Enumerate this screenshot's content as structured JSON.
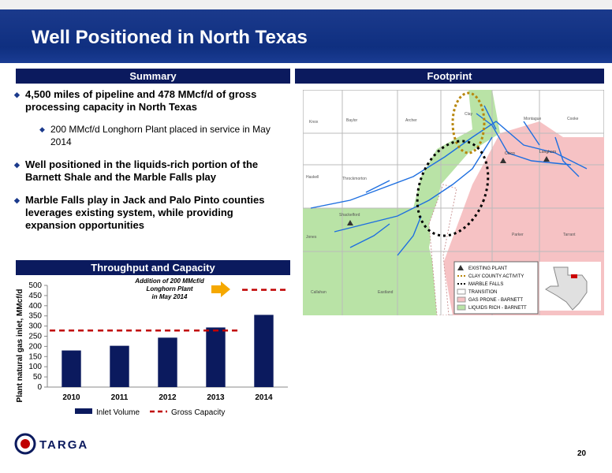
{
  "header": {
    "title": "Well Positioned in North Texas"
  },
  "summary": {
    "heading": "Summary",
    "bullets": [
      {
        "text": "4,500 miles of pipeline and 478 MMcf/d of gross processing capacity in North Texas",
        "sub": [
          "200 MMcf/d Longhorn Plant placed in service in May 2014"
        ]
      },
      {
        "text": "Well positioned in the liquids-rich portion of the Barnett Shale and the Marble Falls play"
      },
      {
        "text": "Marble Falls play in Jack and Palo Pinto counties leverages existing system, while providing expansion opportunities"
      }
    ]
  },
  "footprint": {
    "heading": "Footprint",
    "counties": [
      "Knox",
      "Baylor",
      "Archer",
      "Clay",
      "Montague",
      "Cooke",
      "Haskell",
      "Throckmorton",
      "Shackelford",
      "Jones",
      "Callahan",
      "Eastland",
      "Parker",
      "Tarrant"
    ],
    "plants": [
      "Chico",
      "Longhorn"
    ],
    "legend": [
      "EXISTING PLANT",
      "CLAY COUNTY ACTIVITY",
      "MARBLE FALLS",
      "TRANSITION",
      "GAS PRONE - BARNETT",
      "LIQUIDS RICH - BARNETT"
    ]
  },
  "throughput": {
    "heading": "Throughput and Capacity"
  },
  "chart_data": {
    "type": "bar",
    "y_label": "Plant natural gas inlet, MMcf/d",
    "annotation": [
      "Addition of 200 MMcf/d",
      "Longhorn Plant",
      "in May 2014"
    ],
    "categories": [
      "2010",
      "2011",
      "2012",
      "2013",
      "2014"
    ],
    "series": [
      {
        "name": "Inlet Volume",
        "color": "#0b1a5e",
        "values": [
          180,
          203,
          243,
          293,
          355
        ]
      },
      {
        "name": "Gross Capacity",
        "color": "#c00000",
        "values": [
          278,
          278,
          278,
          278,
          478
        ]
      }
    ],
    "ylim": [
      0,
      500
    ],
    "yticks": [
      0,
      50,
      100,
      150,
      200,
      250,
      300,
      350,
      400,
      450,
      500
    ]
  },
  "footer": {
    "logo": "TARGA",
    "page": "20"
  }
}
